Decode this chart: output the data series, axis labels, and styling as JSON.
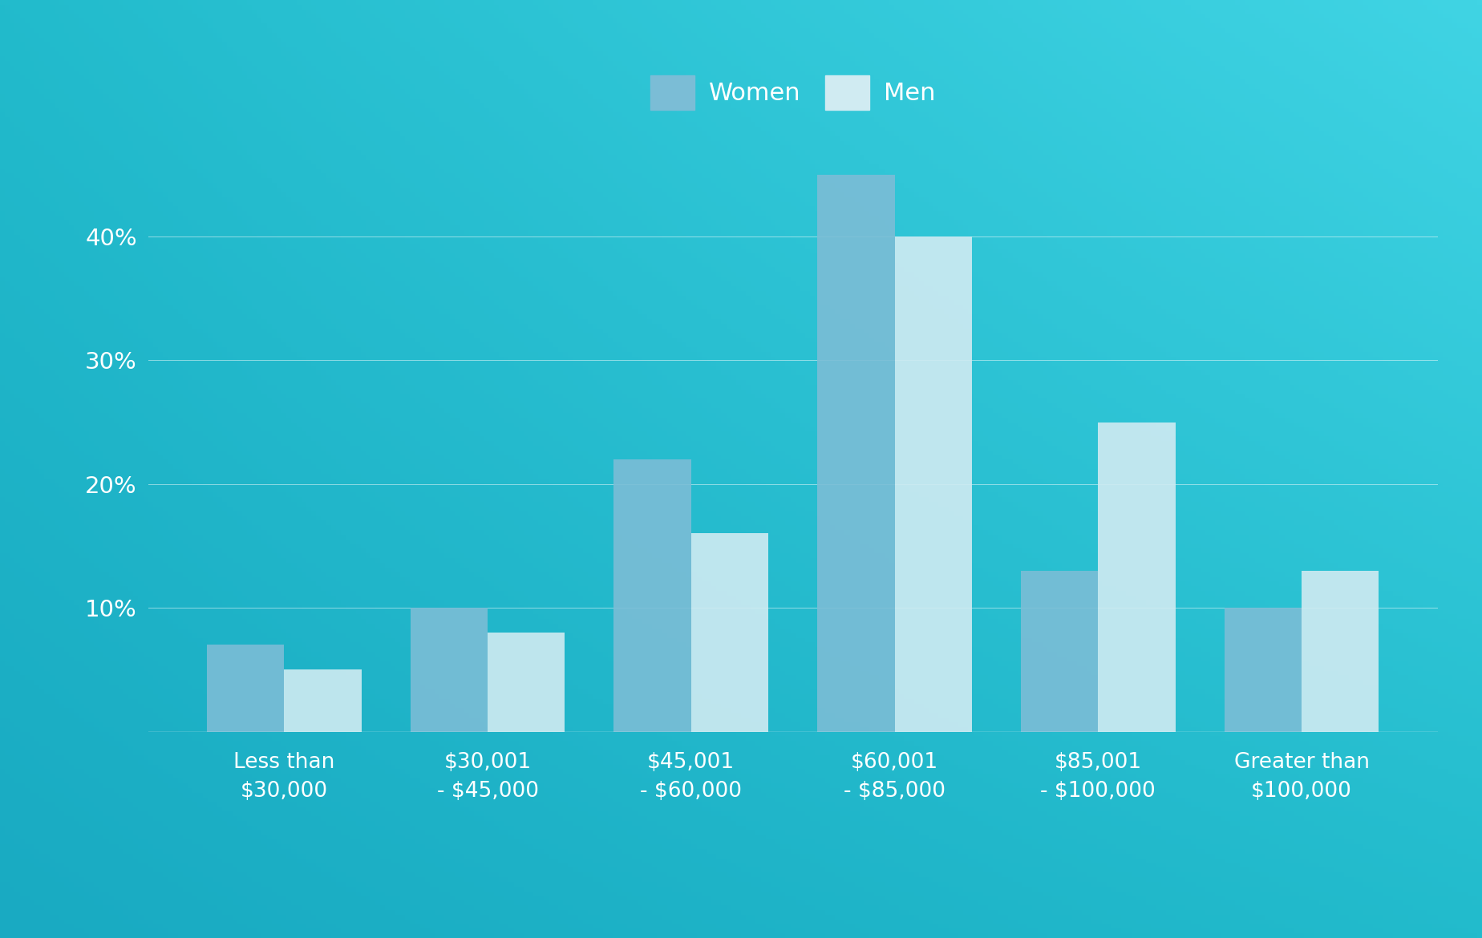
{
  "categories": [
    "Less than\n$30,000",
    "$30,001\n- $45,000",
    "$45,001\n- $60,000",
    "$60,001\n- $85,000",
    "$85,001\n- $100,000",
    "Greater than\n$100,000"
  ],
  "women_values": [
    7,
    10,
    22,
    45,
    13,
    10
  ],
  "men_values": [
    5,
    8,
    16,
    40,
    25,
    13
  ],
  "women_color": "#7BBDD6",
  "men_color": "#D0EBF2",
  "bg_color_tl": "#1FB8D0",
  "bg_color_tr": "#3DCFE0",
  "bg_color_bl": "#19A8C0",
  "bg_color_br": "#25C5D8",
  "yticks": [
    10,
    20,
    30,
    40
  ],
  "ylim": [
    0,
    50
  ],
  "bar_width": 0.38,
  "legend_women": "Women",
  "legend_men": "Men",
  "tick_color": "#ffffff",
  "grid_color": "#ffffff",
  "label_fontsize": 19,
  "tick_fontsize": 21,
  "legend_fontsize": 22
}
